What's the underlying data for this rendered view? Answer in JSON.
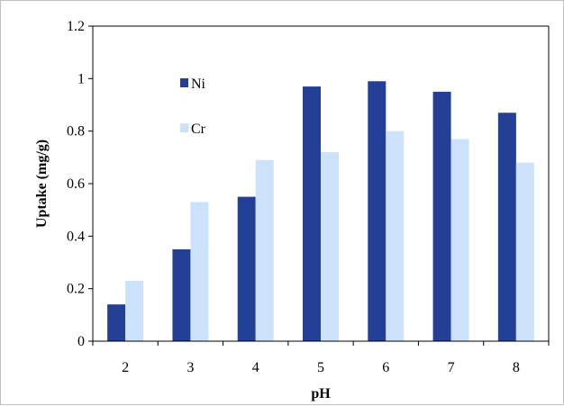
{
  "chart_data": {
    "type": "bar",
    "categories": [
      "2",
      "3",
      "4",
      "5",
      "6",
      "7",
      "8"
    ],
    "series": [
      {
        "name": "Ni",
        "values": [
          0.14,
          0.35,
          0.55,
          0.97,
          0.99,
          0.95,
          0.87
        ],
        "color": "#233f96"
      },
      {
        "name": "Cr",
        "values": [
          0.23,
          0.53,
          0.69,
          0.72,
          0.8,
          0.77,
          0.68
        ],
        "color": "#cce2fa"
      }
    ],
    "xlabel": "pH",
    "ylabel": "Uptake  (mg/g)",
    "ylim": [
      0,
      1.2
    ],
    "yticks": [
      0,
      0.2,
      0.4,
      0.6,
      0.8,
      1,
      1.2
    ],
    "ytick_labels": [
      "0",
      "0.2",
      "0.4",
      "0.6",
      "0.8",
      "1",
      "1.2"
    ],
    "grid": false,
    "legend_position": "upper-left"
  }
}
